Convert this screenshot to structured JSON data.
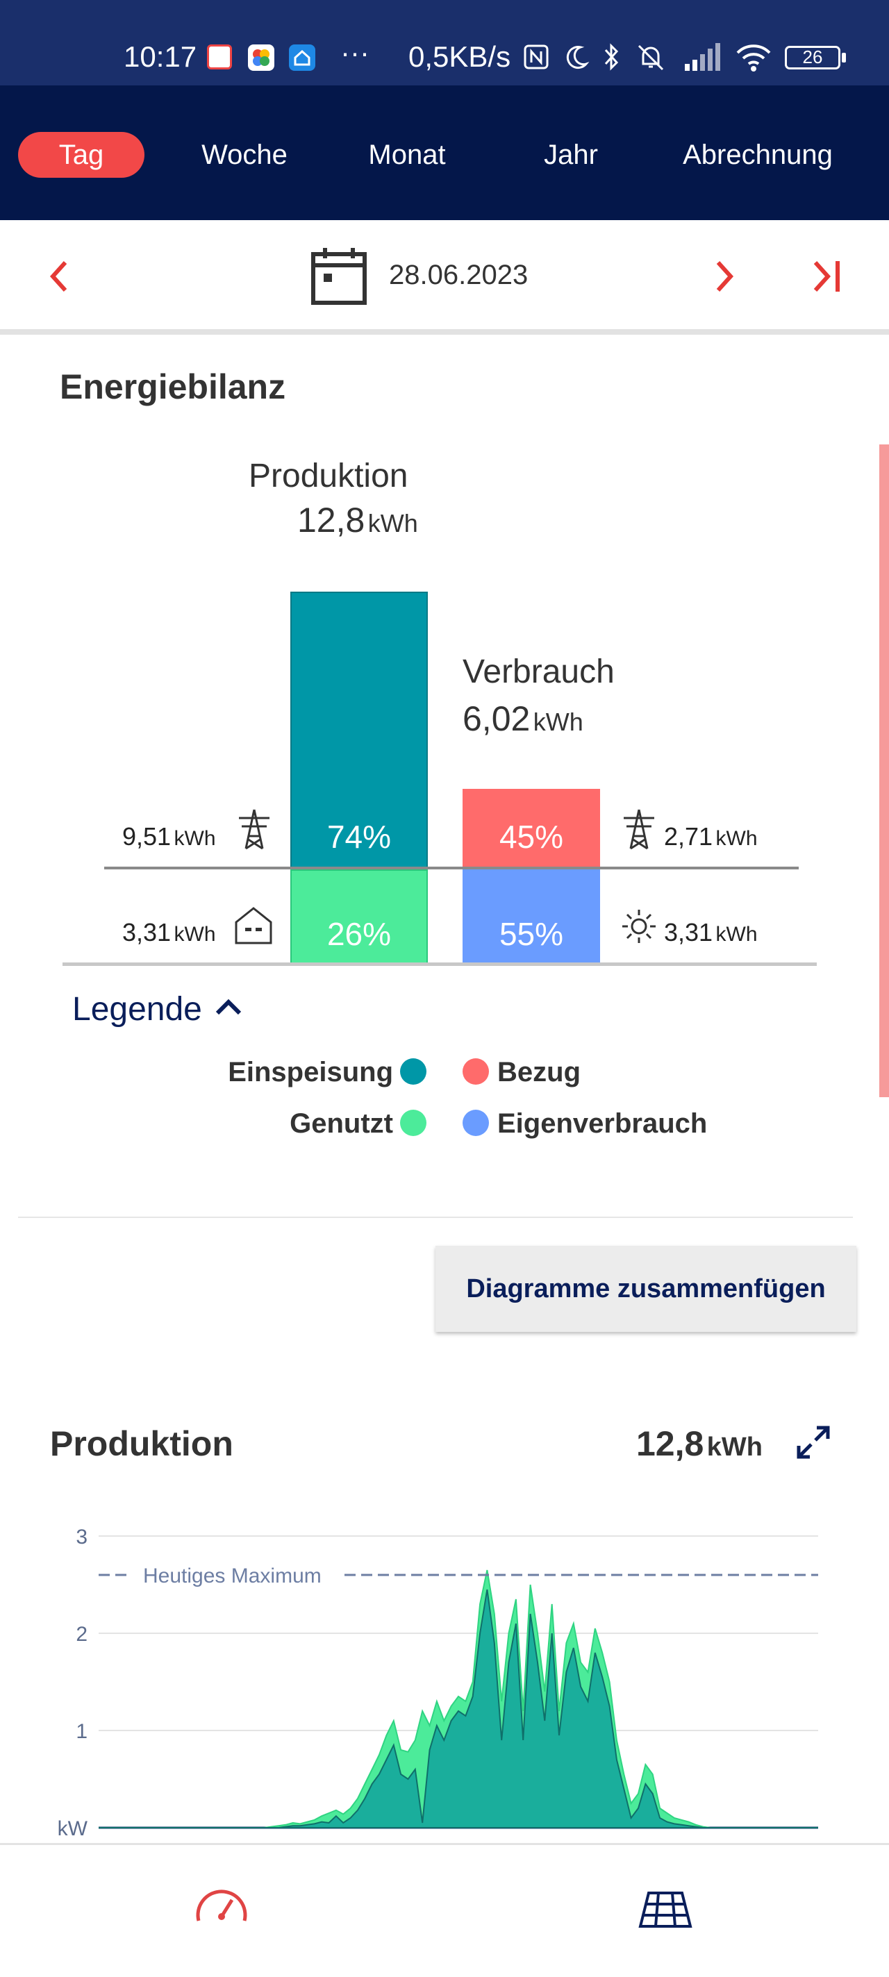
{
  "status_bar": {
    "time": "10:17",
    "net_speed": "0,5KB/s",
    "battery": "26",
    "dots": "···"
  },
  "tabs": [
    {
      "label": "Tag",
      "active": true
    },
    {
      "label": "Woche",
      "active": false
    },
    {
      "label": "Monat",
      "active": false
    },
    {
      "label": "Jahr",
      "active": false
    },
    {
      "label": "Abrechnung",
      "active": false
    }
  ],
  "date_nav": {
    "date": "28.06.2023",
    "prev_icon": "chevron-left-icon",
    "next_icon": "chevron-right-icon",
    "last_icon": "skip-to-last-icon",
    "calendar_icon": "calendar-icon"
  },
  "energy_balance": {
    "title": "Energiebilanz",
    "production": {
      "label": "Produktion",
      "value": "12,8",
      "unit": "kWh"
    },
    "consumption": {
      "label": "Verbrauch",
      "value": "6,02",
      "unit": "kWh"
    },
    "feed_in": {
      "value": "9,51",
      "unit": "kWh",
      "percent": "74%",
      "icon": "power-pylon-icon",
      "color": "#0097a7"
    },
    "used": {
      "value": "3,31",
      "unit": "kWh",
      "percent": "26%",
      "icon": "house-icon",
      "color": "#4ceb9a"
    },
    "grid_purchase": {
      "value": "2,71",
      "unit": "kWh",
      "percent": "45%",
      "icon": "power-pylon-icon",
      "color": "#ff6b6b"
    },
    "self_consumption": {
      "value": "3,31",
      "unit": "kWh",
      "percent": "55%",
      "icon": "sun-icon",
      "color": "#6a9cff"
    }
  },
  "legend": {
    "title": "Legende",
    "toggle_icon": "chevron-up-icon",
    "items": [
      {
        "label": "Einspeisung",
        "color": "#0097a7"
      },
      {
        "label": "Bezug",
        "color": "#ff6b6b"
      },
      {
        "label": "Genutzt",
        "color": "#4ceb9a"
      },
      {
        "label": "Eigenverbrauch",
        "color": "#6a9cff"
      }
    ]
  },
  "merge_button": {
    "label": "Diagramme zusammenfügen"
  },
  "production_chart_header": {
    "title": "Produktion",
    "value": "12,8",
    "unit": "kWh",
    "expand_icon": "expand-icon"
  },
  "chart_data": {
    "type": "area",
    "title": "Produktion",
    "xlabel": "",
    "ylabel": "kW",
    "ylim": [
      0,
      3
    ],
    "yticks": [
      "3",
      "2",
      "1",
      "kW"
    ],
    "reference_line": {
      "label": "Heutiges Maximum",
      "value": 2.6
    },
    "x": [
      0,
      1,
      2,
      3,
      4,
      5,
      6,
      7,
      8,
      9,
      10,
      11,
      12,
      13,
      14,
      15,
      16,
      17,
      18,
      19,
      20,
      21,
      22,
      23,
      24,
      25,
      26,
      27,
      28,
      29,
      30,
      31,
      32,
      33,
      34,
      35,
      36,
      37,
      38,
      39,
      40,
      41,
      42,
      43,
      44,
      45,
      46,
      47,
      48,
      49,
      50,
      51,
      52,
      53,
      54,
      55,
      56,
      57,
      58,
      59,
      60,
      61,
      62,
      63,
      64,
      65,
      66,
      67,
      68,
      69,
      70,
      71,
      72,
      73,
      74,
      75,
      76,
      77,
      78,
      79,
      80,
      81,
      82,
      83,
      84,
      85,
      86,
      87,
      88,
      89,
      90,
      91,
      92,
      93,
      94,
      95,
      96,
      97,
      98,
      99,
      100
    ],
    "series": [
      {
        "color": "#4ceb9a",
        "values": [
          0,
          0,
          0,
          0,
          0,
          0,
          0,
          0,
          0,
          0,
          0,
          0,
          0,
          0,
          0,
          0,
          0,
          0,
          0,
          0,
          0,
          0,
          0,
          0,
          0.01,
          0.02,
          0.03,
          0.05,
          0.04,
          0.06,
          0.08,
          0.12,
          0.15,
          0.18,
          0.14,
          0.2,
          0.3,
          0.45,
          0.6,
          0.75,
          0.95,
          1.1,
          0.8,
          0.78,
          0.9,
          1.2,
          1.05,
          1.3,
          1.1,
          1.25,
          1.35,
          1.3,
          1.5,
          2.3,
          2.65,
          2.2,
          1.3,
          2.0,
          2.35,
          1.2,
          2.5,
          2.0,
          1.4,
          2.3,
          1.2,
          1.9,
          2.1,
          1.7,
          1.6,
          2.05,
          1.8,
          1.5,
          0.9,
          0.55,
          0.25,
          0.35,
          0.65,
          0.55,
          0.2,
          0.15,
          0.1,
          0.08,
          0.06,
          0.03,
          0.01,
          0,
          0,
          0,
          0,
          0,
          0,
          0,
          0,
          0,
          0,
          0,
          0,
          0,
          0,
          0,
          0
        ]
      },
      {
        "color": "#1aae9c",
        "values": [
          0,
          0,
          0,
          0,
          0,
          0,
          0,
          0,
          0,
          0,
          0,
          0,
          0,
          0,
          0,
          0,
          0,
          0,
          0,
          0,
          0,
          0,
          0,
          0,
          0,
          0,
          0.01,
          0.02,
          0.02,
          0.03,
          0.04,
          0.06,
          0.05,
          0.12,
          0.05,
          0.1,
          0.18,
          0.3,
          0.45,
          0.55,
          0.7,
          0.85,
          0.55,
          0.5,
          0.6,
          0.05,
          0.8,
          1.05,
          0.9,
          1.1,
          1.2,
          1.15,
          1.35,
          2.0,
          2.45,
          1.9,
          0.9,
          1.7,
          2.1,
          0.9,
          2.2,
          1.7,
          1.1,
          2.0,
          0.95,
          1.6,
          1.85,
          1.45,
          1.3,
          1.8,
          1.55,
          1.25,
          0.7,
          0.4,
          0.1,
          0.2,
          0.45,
          0.35,
          0.1,
          0.06,
          0.04,
          0.03,
          0.02,
          0.01,
          0,
          0,
          0,
          0,
          0,
          0,
          0,
          0,
          0,
          0,
          0,
          0,
          0,
          0,
          0,
          0,
          0
        ]
      }
    ]
  },
  "bottom_nav": {
    "items": [
      {
        "icon": "speedometer-icon",
        "color": "#e04444"
      },
      {
        "icon": "solar-panel-icon",
        "color": "#0a1e5a"
      }
    ]
  }
}
